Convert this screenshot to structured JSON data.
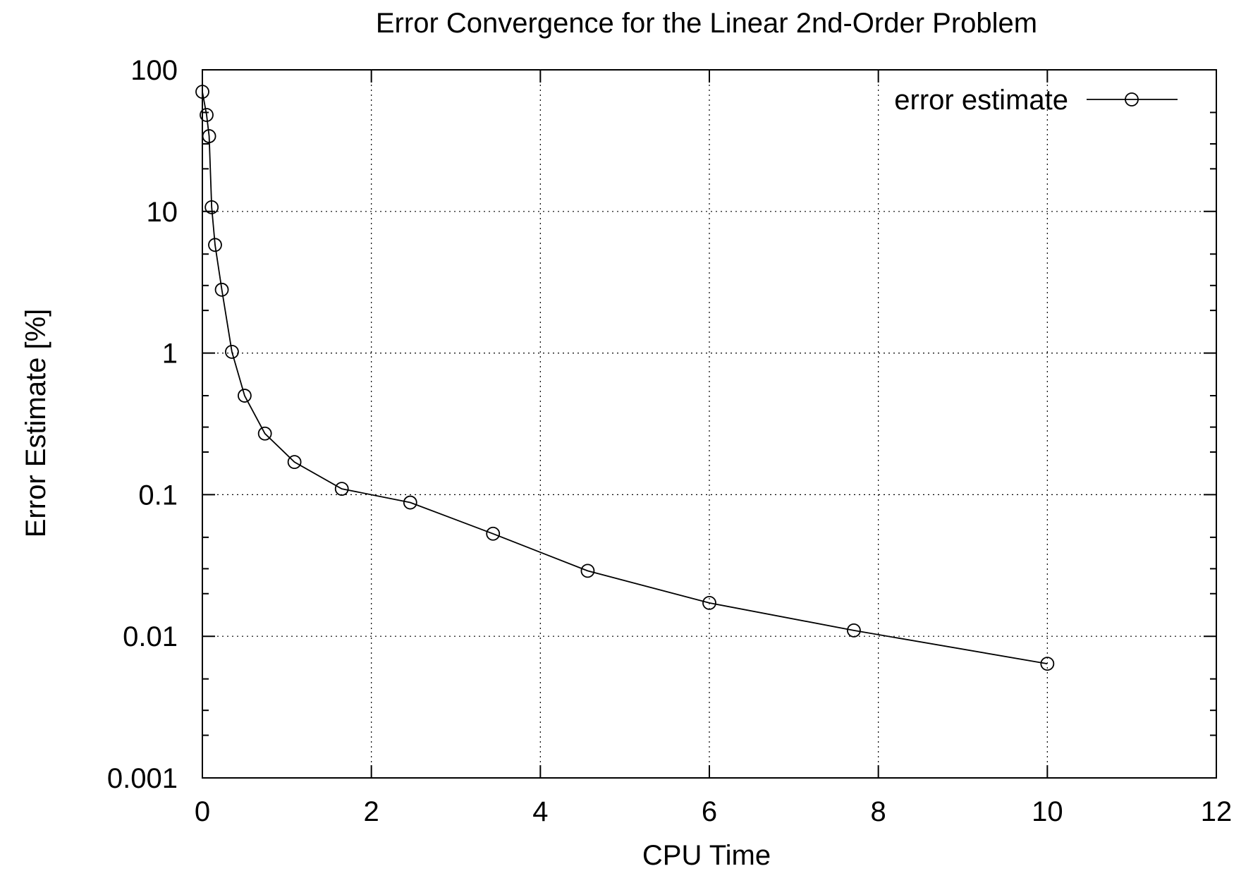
{
  "chart_data": {
    "type": "line",
    "title": "Error Convergence for the Linear 2nd-Order Problem",
    "xlabel": "CPU Time",
    "ylabel": "Error Estimate [%]",
    "xlim": [
      0,
      12
    ],
    "ylim": [
      0.001,
      100
    ],
    "y_scale": "log",
    "grid": true,
    "legend_position": "top-right",
    "x_ticks": [
      0,
      2,
      4,
      6,
      8,
      10,
      12
    ],
    "x_tick_labels": [
      "0",
      "2",
      "4",
      "6",
      "8",
      "10",
      "12"
    ],
    "y_ticks": [
      0.001,
      0.01,
      0.1,
      1,
      10,
      100
    ],
    "y_tick_labels": [
      "0.001",
      "0.01",
      "0.1",
      "1",
      "10",
      "100"
    ],
    "series": [
      {
        "name": "error estimate",
        "marker": "open-circle",
        "color": "#000000",
        "x": [
          0.0,
          0.05,
          0.08,
          0.11,
          0.15,
          0.23,
          0.35,
          0.5,
          0.74,
          1.09,
          1.65,
          2.46,
          3.44,
          4.56,
          6.0,
          7.71,
          10.0
        ],
        "y": [
          70,
          48,
          34,
          10.7,
          5.8,
          2.8,
          1.02,
          0.5,
          0.27,
          0.17,
          0.11,
          0.088,
          0.053,
          0.029,
          0.0172,
          0.011,
          0.0064
        ]
      }
    ]
  }
}
